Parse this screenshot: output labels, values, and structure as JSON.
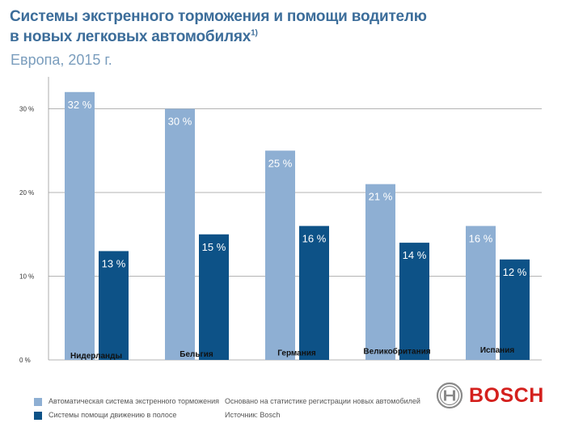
{
  "header": {
    "title_line1": "Системы экстренного торможения и помощи водителю",
    "title_line2": "в новых легковых автомобилях",
    "footnote_mark": "1)",
    "subtitle": "Европа, 2015 г."
  },
  "chart_data": {
    "type": "bar",
    "categories": [
      "Нидерланды",
      "Бельгия",
      "Германия",
      "Великобритания",
      "Испания"
    ],
    "series": [
      {
        "name": "Автоматическая система экстренного торможения",
        "values": [
          32,
          30,
          25,
          21,
          16
        ]
      },
      {
        "name": "Системы помощи движению в полосе",
        "values": [
          13,
          15,
          16,
          14,
          12
        ]
      }
    ],
    "data_labels": [
      [
        "32 %",
        "30 %",
        "25 %",
        "21 %",
        "16 %"
      ],
      [
        "13 %",
        "15 %",
        "16 %",
        "14 %",
        "12 %"
      ]
    ],
    "yticks": [
      0,
      10,
      20,
      30
    ],
    "ytick_labels": [
      "0 %",
      "10 %",
      "20 %",
      "30 %"
    ],
    "ylim": [
      0,
      32
    ],
    "grid": true,
    "legend_position": "bottom-left",
    "colors": [
      "#8eafd3",
      "#0d5287"
    ]
  },
  "legend": {
    "items": [
      {
        "label": "Автоматическая система экстренного торможения",
        "color": "#8eafd3"
      },
      {
        "label": "Системы помощи движению в полосе",
        "color": "#0d5287"
      }
    ]
  },
  "footer": {
    "basis_note": "Основано на статистике регистрации новых автомобилей",
    "source": "Источник: Bosch",
    "brand": "BOSCH",
    "brand_color": "#d4201d",
    "brand_icon": "bosch-armature-icon"
  }
}
